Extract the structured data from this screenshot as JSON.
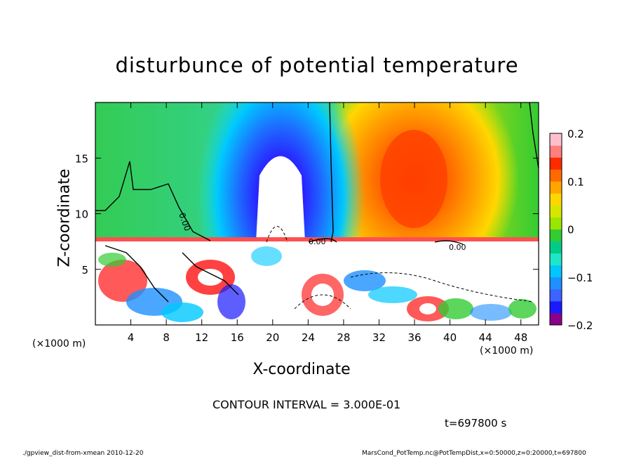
{
  "title": "disturbunce of potential temperature",
  "x_unit": "(×1000 m)",
  "x_unit_right": "(×1000 m)",
  "contour_interval": "CONTOUR INTERVAL = 3.000E-01",
  "time_label": "t=697800 s",
  "footer_left": "./gpview_dist-from-xmean  2010-12-20",
  "footer_right": "MarsCond_PotTemp.nc@PotTempDist,x=0:50000,z=0:20000,t=697800",
  "contour_labels": [
    "0.00",
    "0.00",
    "0.00"
  ],
  "colorbar_colors": [
    "#8b008b",
    "#1a1aff",
    "#3c64ff",
    "#1e90ff",
    "#00c8ff",
    "#20e6c8",
    "#00cc88",
    "#33cc33",
    "#99e600",
    "#d7e600",
    "#ffd700",
    "#ffa500",
    "#ff6a00",
    "#ff2a00",
    "#ff7f7f",
    "#ffc0cb"
  ],
  "chart_data": {
    "type": "heatmap",
    "title": "disturbunce of potential temperature",
    "xlabel": "X-coordinate",
    "ylabel": "Z-coordinate",
    "xlim": [
      0,
      50
    ],
    "ylim": [
      0,
      20
    ],
    "xticks": [
      4,
      8,
      12,
      16,
      20,
      24,
      28,
      32,
      36,
      40,
      44,
      48
    ],
    "yticks": [
      5,
      10,
      15
    ],
    "colorbar": {
      "range": [
        -0.2,
        0.2
      ],
      "ticks": [
        0.2,
        0.1,
        0,
        -0.1,
        -0.2
      ],
      "tick_labels": [
        "0.2",
        "0.1",
        "0",
        "−0.1",
        "−0.2"
      ]
    },
    "features": [
      {
        "kind": "cold anomaly",
        "x": 20.5,
        "z_top": 15,
        "value": -0.2
      },
      {
        "kind": "warm anomaly",
        "x": 36,
        "z": 13.5,
        "value": 0.15
      },
      {
        "kind": "inversion layer",
        "z": 7.5
      }
    ]
  }
}
